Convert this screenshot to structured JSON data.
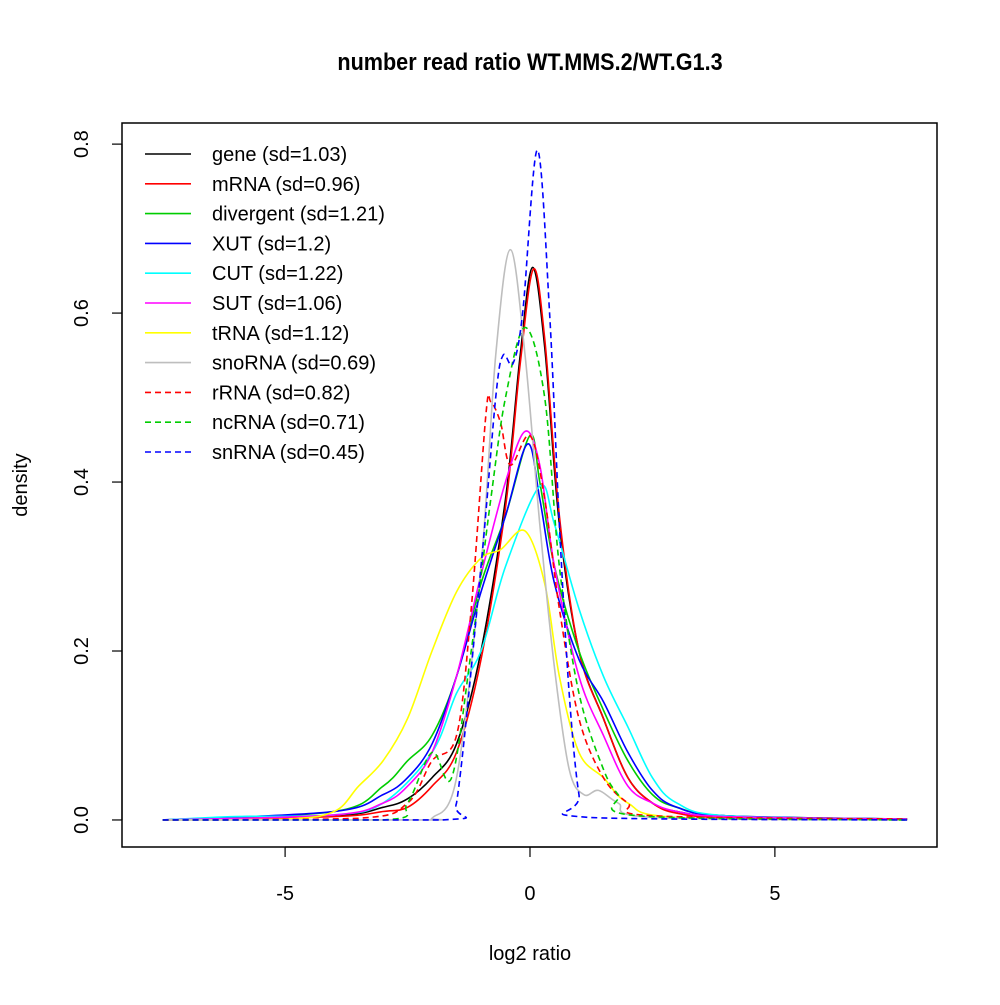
{
  "chart_data": {
    "type": "line",
    "title": "number read ratio WT.MMS.2/WT.G1.3",
    "xlabel": "log2 ratio",
    "ylabel": "density",
    "xlim": [
      -8.33,
      8.31
    ],
    "ylim": [
      -0.032,
      0.825
    ],
    "xticks": [
      -5,
      0,
      5
    ],
    "xtick_labels": [
      "-5",
      "0",
      "5"
    ],
    "yticks": [
      0,
      0.2,
      0.4,
      0.6,
      0.8
    ],
    "ytick_labels": [
      "0.0",
      "0.2",
      "0.4",
      "0.6",
      "0.8"
    ],
    "grid": false,
    "legend_position": "top-left",
    "series": [
      {
        "name": "gene (sd=1.03)",
        "color": "#000000",
        "dash": false,
        "points": [
          [
            -7.5,
            0
          ],
          [
            -4,
            0.005
          ],
          [
            -3,
            0.015
          ],
          [
            -2.5,
            0.025
          ],
          [
            -2,
            0.05
          ],
          [
            -1.5,
            0.09
          ],
          [
            -1,
            0.2
          ],
          [
            -0.5,
            0.38
          ],
          [
            -0.2,
            0.55
          ],
          [
            0.05,
            0.654
          ],
          [
            0.3,
            0.56
          ],
          [
            0.6,
            0.35
          ],
          [
            1,
            0.2
          ],
          [
            1.5,
            0.12
          ],
          [
            2,
            0.05
          ],
          [
            2.5,
            0.02
          ],
          [
            3,
            0.01
          ],
          [
            4,
            0.004
          ],
          [
            7.7,
            0.001
          ]
        ]
      },
      {
        "name": "mRNA (sd=0.96)",
        "color": "#ff0000",
        "dash": false,
        "points": [
          [
            -7.5,
            0
          ],
          [
            -4,
            0.004
          ],
          [
            -3,
            0.01
          ],
          [
            -2.5,
            0.015
          ],
          [
            -2,
            0.04
          ],
          [
            -1.5,
            0.08
          ],
          [
            -1,
            0.19
          ],
          [
            -0.5,
            0.37
          ],
          [
            -0.2,
            0.54
          ],
          [
            0.07,
            0.652
          ],
          [
            0.3,
            0.57
          ],
          [
            0.6,
            0.36
          ],
          [
            1,
            0.2
          ],
          [
            1.5,
            0.12
          ],
          [
            2,
            0.05
          ],
          [
            2.5,
            0.02
          ],
          [
            3,
            0.008
          ],
          [
            4,
            0.003
          ],
          [
            7.7,
            0.001
          ]
        ]
      },
      {
        "name": "divergent (sd=1.21)",
        "color": "#00cd00",
        "dash": false,
        "points": [
          [
            -7.5,
            0
          ],
          [
            -4,
            0.01
          ],
          [
            -3,
            0.04
          ],
          [
            -2.5,
            0.07
          ],
          [
            -2,
            0.1
          ],
          [
            -1.5,
            0.17
          ],
          [
            -1,
            0.28
          ],
          [
            -0.5,
            0.36
          ],
          [
            0,
            0.455
          ],
          [
            0.2,
            0.4
          ],
          [
            0.5,
            0.3
          ],
          [
            1,
            0.2
          ],
          [
            1.5,
            0.13
          ],
          [
            2,
            0.07
          ],
          [
            2.5,
            0.03
          ],
          [
            3,
            0.015
          ],
          [
            4,
            0.005
          ],
          [
            7.7,
            0.001
          ]
        ]
      },
      {
        "name": "XUT (sd=1.2)",
        "color": "#0000ff",
        "dash": false,
        "points": [
          [
            -7.5,
            0
          ],
          [
            -4,
            0.01
          ],
          [
            -3,
            0.03
          ],
          [
            -2.5,
            0.05
          ],
          [
            -2,
            0.09
          ],
          [
            -1.5,
            0.17
          ],
          [
            -1,
            0.27
          ],
          [
            -0.5,
            0.36
          ],
          [
            -0.05,
            0.445
          ],
          [
            0.2,
            0.38
          ],
          [
            0.5,
            0.28
          ],
          [
            1,
            0.19
          ],
          [
            1.5,
            0.14
          ],
          [
            2,
            0.08
          ],
          [
            2.5,
            0.035
          ],
          [
            3,
            0.015
          ],
          [
            4,
            0.005
          ],
          [
            7.7,
            0.001
          ]
        ]
      },
      {
        "name": "CUT (sd=1.22)",
        "color": "#00ffff",
        "dash": false,
        "points": [
          [
            -7.5,
            0
          ],
          [
            -6,
            0.004
          ],
          [
            -4,
            0.006
          ],
          [
            -3,
            0.02
          ],
          [
            -2,
            0.08
          ],
          [
            -1.5,
            0.15
          ],
          [
            -1,
            0.2
          ],
          [
            -0.5,
            0.3
          ],
          [
            0.2,
            0.395
          ],
          [
            0.5,
            0.35
          ],
          [
            1,
            0.25
          ],
          [
            1.5,
            0.17
          ],
          [
            2,
            0.11
          ],
          [
            2.5,
            0.05
          ],
          [
            3,
            0.02
          ],
          [
            4,
            0.005
          ],
          [
            7.7,
            0.001
          ]
        ]
      },
      {
        "name": "SUT (sd=1.06)",
        "color": "#ff00ff",
        "dash": false,
        "points": [
          [
            -7.5,
            0
          ],
          [
            -4,
            0.006
          ],
          [
            -3,
            0.02
          ],
          [
            -2.5,
            0.04
          ],
          [
            -2,
            0.08
          ],
          [
            -1.5,
            0.17
          ],
          [
            -1,
            0.29
          ],
          [
            -0.5,
            0.4
          ],
          [
            -0.1,
            0.46
          ],
          [
            0.2,
            0.42
          ],
          [
            0.5,
            0.3
          ],
          [
            1,
            0.17
          ],
          [
            1.5,
            0.1
          ],
          [
            2,
            0.04
          ],
          [
            2.5,
            0.02
          ],
          [
            3,
            0.01
          ],
          [
            4,
            0.004
          ],
          [
            7.7,
            0.001
          ]
        ]
      },
      {
        "name": "tRNA (sd=1.12)",
        "color": "#ffff00",
        "dash": false,
        "points": [
          [
            -7.5,
            0
          ],
          [
            -5,
            0.001
          ],
          [
            -4,
            0.01
          ],
          [
            -3.5,
            0.04
          ],
          [
            -3,
            0.07
          ],
          [
            -2.5,
            0.12
          ],
          [
            -2,
            0.2
          ],
          [
            -1.5,
            0.27
          ],
          [
            -1,
            0.31
          ],
          [
            -0.6,
            0.32
          ],
          [
            -0.1,
            0.342
          ],
          [
            0.3,
            0.28
          ],
          [
            0.6,
            0.17
          ],
          [
            1,
            0.08
          ],
          [
            1.5,
            0.05
          ],
          [
            2,
            0.02
          ],
          [
            3,
            0.003
          ],
          [
            7.7,
            0
          ]
        ]
      },
      {
        "name": "snoRNA (sd=0.69)",
        "color": "#bebebe",
        "dash": false,
        "points": [
          [
            -7.5,
            0
          ],
          [
            -2.2,
            0
          ],
          [
            -2,
            0.002
          ],
          [
            -1.5,
            0.05
          ],
          [
            -1,
            0.3
          ],
          [
            -0.7,
            0.55
          ],
          [
            -0.4,
            0.675
          ],
          [
            -0.1,
            0.55
          ],
          [
            0.2,
            0.35
          ],
          [
            0.5,
            0.18
          ],
          [
            0.8,
            0.06
          ],
          [
            1.1,
            0.03
          ],
          [
            1.4,
            0.035
          ],
          [
            1.8,
            0.02
          ],
          [
            2.5,
            0.003
          ],
          [
            7.7,
            0
          ]
        ]
      },
      {
        "name": "rRNA (sd=0.82)",
        "color": "#ff0000",
        "dash": true,
        "points": [
          [
            -7.5,
            0
          ],
          [
            -3.5,
            0.002
          ],
          [
            -2.5,
            0.02
          ],
          [
            -2,
            0.07
          ],
          [
            -1.5,
            0.1
          ],
          [
            -1.2,
            0.25
          ],
          [
            -0.9,
            0.48
          ],
          [
            -0.8,
            0.495
          ],
          [
            -0.6,
            0.47
          ],
          [
            -0.4,
            0.42
          ],
          [
            0,
            0.455
          ],
          [
            0.3,
            0.38
          ],
          [
            0.6,
            0.25
          ],
          [
            1,
            0.12
          ],
          [
            1.5,
            0.05
          ],
          [
            2,
            0.02
          ],
          [
            2.5,
            0.005
          ],
          [
            7.7,
            0.001
          ]
        ]
      },
      {
        "name": "ncRNA (sd=0.71)",
        "color": "#00cd00",
        "dash": true,
        "points": [
          [
            -7.5,
            0
          ],
          [
            -3,
            0
          ],
          [
            -2.5,
            0.02
          ],
          [
            -2,
            0.08
          ],
          [
            -1.6,
            0.05
          ],
          [
            -1.2,
            0.2
          ],
          [
            -0.8,
            0.38
          ],
          [
            -0.5,
            0.5
          ],
          [
            -0.1,
            0.583
          ],
          [
            0.3,
            0.5
          ],
          [
            0.6,
            0.3
          ],
          [
            1,
            0.15
          ],
          [
            1.5,
            0.06
          ],
          [
            1.8,
            0.03
          ],
          [
            2.2,
            0.005
          ],
          [
            7.7,
            0
          ]
        ]
      },
      {
        "name": "snRNA (sd=0.45)",
        "color": "#0000ff",
        "dash": true,
        "points": [
          [
            -7.5,
            0
          ],
          [
            -1.8,
            0
          ],
          [
            -1.5,
            0.02
          ],
          [
            -1,
            0.3
          ],
          [
            -0.7,
            0.5
          ],
          [
            -0.55,
            0.55
          ],
          [
            -0.35,
            0.54
          ],
          [
            -0.15,
            0.6
          ],
          [
            0.15,
            0.793
          ],
          [
            0.4,
            0.6
          ],
          [
            0.6,
            0.35
          ],
          [
            0.8,
            0.15
          ],
          [
            1,
            0.03
          ],
          [
            1.2,
            0.003
          ],
          [
            7.7,
            0
          ]
        ]
      }
    ]
  }
}
